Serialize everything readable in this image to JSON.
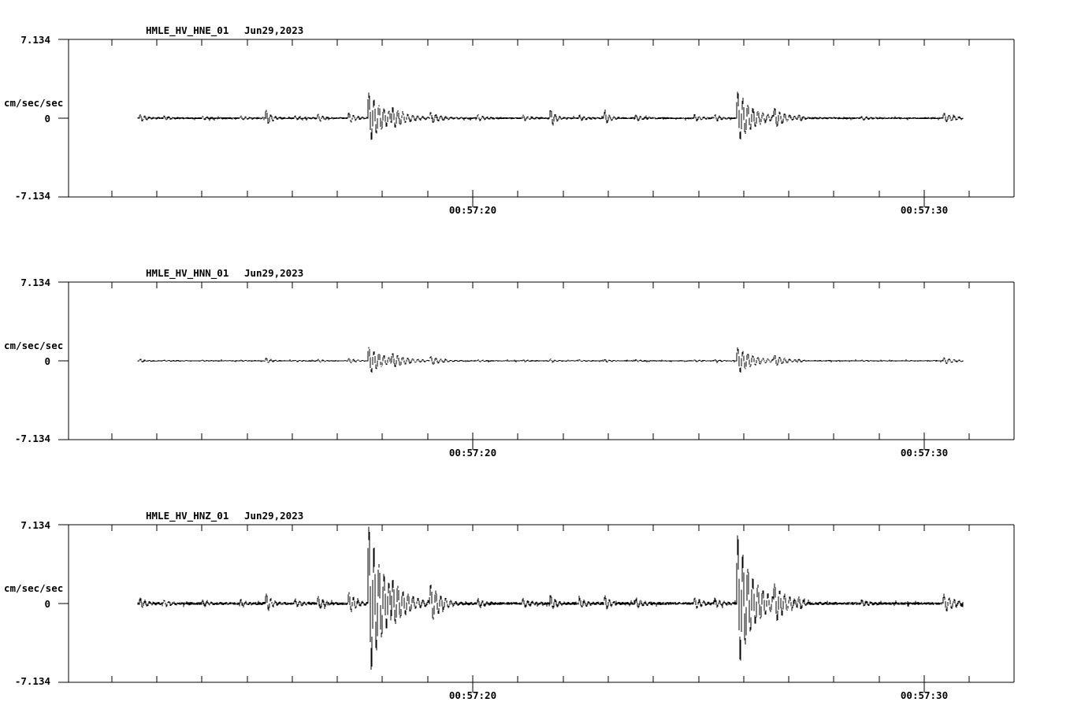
{
  "page": {
    "background": "#ffffff",
    "foreground": "#000000"
  },
  "panels": [
    {
      "station": "HMLE_HV_HNE_01",
      "date": "Jun29,2023",
      "units_label": "cm/sec/sec",
      "y_max_label": "7.134",
      "y_zero_label": "0",
      "y_min_label": "-7.134",
      "x_tick_label_1": "00:57:20",
      "x_tick_label_2": "00:57:30"
    },
    {
      "station": "HMLE_HV_HNN_01",
      "date": "Jun29,2023",
      "units_label": "cm/sec/sec",
      "y_max_label": "7.134",
      "y_zero_label": "0",
      "y_min_label": "-7.134",
      "x_tick_label_1": "00:57:20",
      "x_tick_label_2": "00:57:30"
    },
    {
      "station": "HMLE_HV_HNZ_01",
      "date": "Jun29,2023",
      "units_label": "cm/sec/sec",
      "y_max_label": "7.134",
      "y_zero_label": "0",
      "y_min_label": "-7.134",
      "x_tick_label_1": "00:57:20",
      "x_tick_label_2": "00:57:30"
    }
  ],
  "chart_data": {
    "type": "line",
    "title": "Three-component strong-motion seismogram, station HMLE (HV network), Jun29,2023",
    "ylabel": "cm/sec/sec",
    "y_axis": {
      "max": 7.134,
      "min": -7.134,
      "zero": 0
    },
    "x_axis": {
      "plot_start_s": 11.05,
      "plot_end_s": 31.98,
      "trace_start_s": 12.58,
      "trace_end_s": 30.86,
      "minor_tick_interval_s": 1,
      "major_ticks": [
        {
          "time_s": 20,
          "label": "00:57:20"
        },
        {
          "time_s": 30,
          "label": "00:57:30"
        }
      ]
    },
    "grid": false,
    "legend": "none",
    "line_color": "#000000",
    "events_note": "each event: [time_s_after_00:57:00, freq_hz, decay_per_s, amp_HNE, amp_HNN, amp_HNZ] amplitudes in cm/sec/sec",
    "events": [
      [
        12.62,
        10,
        6.0,
        0.35,
        0.15,
        0.5
      ],
      [
        13.15,
        10,
        6.0,
        0.2,
        0.08,
        0.35
      ],
      [
        14.0,
        10,
        6.0,
        0.18,
        0.07,
        0.3
      ],
      [
        14.85,
        10,
        6.0,
        0.2,
        0.08,
        0.35
      ],
      [
        15.41,
        10,
        8.0,
        0.8,
        0.3,
        1.0
      ],
      [
        16.05,
        10,
        6.0,
        0.2,
        0.08,
        0.4
      ],
      [
        16.56,
        10,
        7.0,
        0.4,
        0.15,
        0.7
      ],
      [
        17.24,
        10,
        6.0,
        0.5,
        0.25,
        1.05
      ],
      [
        17.68,
        9,
        3.0,
        2.5,
        1.35,
        7.6
      ],
      [
        18.2,
        9,
        3.0,
        1.15,
        0.8,
        2.6
      ],
      [
        19.05,
        9,
        4.0,
        0.6,
        0.5,
        2.1
      ],
      [
        20.1,
        10,
        7.0,
        0.35,
        0.12,
        0.5
      ],
      [
        21.1,
        10,
        6.0,
        0.28,
        0.1,
        0.45
      ],
      [
        21.71,
        10,
        8.0,
        0.9,
        0.2,
        0.9
      ],
      [
        22.35,
        10,
        6.0,
        0.3,
        0.1,
        0.5
      ],
      [
        22.91,
        10,
        8.0,
        0.75,
        0.18,
        0.8
      ],
      [
        23.6,
        10,
        6.0,
        0.3,
        0.1,
        0.5
      ],
      [
        24.9,
        10,
        6.0,
        0.35,
        0.12,
        0.6
      ],
      [
        25.35,
        10,
        6.0,
        0.35,
        0.12,
        0.55
      ],
      [
        25.85,
        9,
        3.0,
        2.5,
        1.3,
        6.6
      ],
      [
        26.67,
        9,
        3.5,
        1.1,
        0.6,
        2.3
      ],
      [
        27.2,
        10,
        6.0,
        0.3,
        0.12,
        0.6
      ],
      [
        28.6,
        10,
        6.0,
        0.2,
        0.08,
        0.35
      ],
      [
        30.42,
        9,
        4.0,
        0.45,
        0.3,
        0.85
      ]
    ],
    "series": [
      {
        "name": "HMLE_HV_HNE_01",
        "component": "HNE",
        "noise_amp": 0.09,
        "amp_index": 3,
        "seed": 11
      },
      {
        "name": "HMLE_HV_HNN_01",
        "component": "HNN",
        "noise_amp": 0.055,
        "amp_index": 4,
        "seed": 22
      },
      {
        "name": "HMLE_HV_HNZ_01",
        "component": "HNZ",
        "noise_amp": 0.13,
        "amp_index": 5,
        "seed": 33
      }
    ]
  }
}
